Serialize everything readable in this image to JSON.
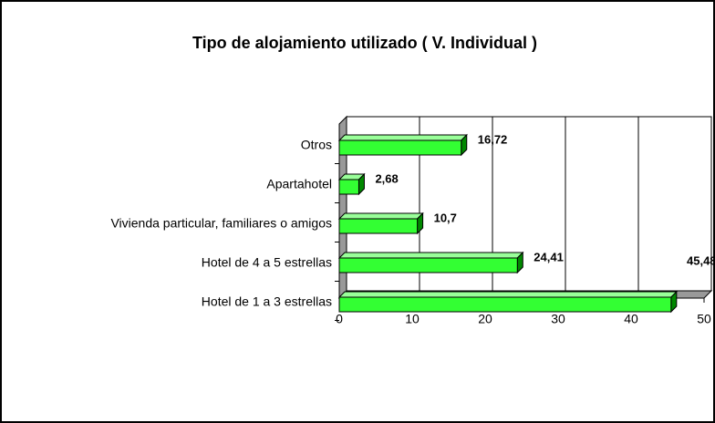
{
  "chart_data": {
    "type": "bar",
    "orientation": "horizontal",
    "title": "Tipo de alojamiento utilizado ( V. Individual )",
    "categories": [
      "Otros",
      "Apartahotel",
      "Vivienda particular, familiares o amigos",
      "Hotel de 4 a 5 estrellas",
      "Hotel de 1 a 3 estrellas"
    ],
    "values": [
      16.72,
      2.68,
      10.7,
      24.41,
      45.48
    ],
    "value_labels": [
      "16,72",
      "2,68",
      "10,7",
      "24,41",
      "45,48"
    ],
    "color": "#33ff33",
    "xlim": [
      0,
      50
    ],
    "xticks": [
      0,
      10,
      20,
      30,
      40,
      50
    ],
    "grid": true
  }
}
